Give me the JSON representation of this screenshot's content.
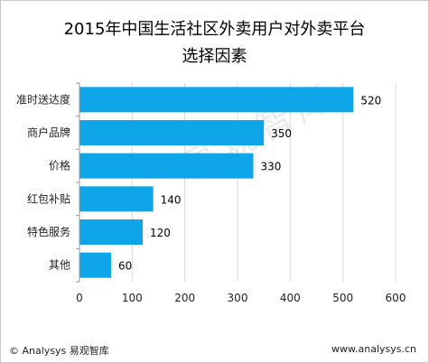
{
  "chart_data": {
    "type": "bar",
    "orientation": "horizontal",
    "title_line1": "2015年中国生活社区外卖用户对外卖平台",
    "title_line2": "选择因素",
    "categories": [
      "准时送达度",
      "商户品牌",
      "价格",
      "红包补贴",
      "特色服务",
      "其他"
    ],
    "values": [
      520,
      350,
      330,
      140,
      120,
      60
    ],
    "xlim": [
      0,
      600
    ],
    "xticks": [
      0,
      100,
      200,
      300,
      400,
      500,
      600
    ],
    "grid": true,
    "bar_color": "#0ea5e9",
    "label_color": "#000000"
  },
  "watermark": "易观智库",
  "footer": {
    "left": "© Analysys 易观智库",
    "right": "www.analysys.cn"
  }
}
